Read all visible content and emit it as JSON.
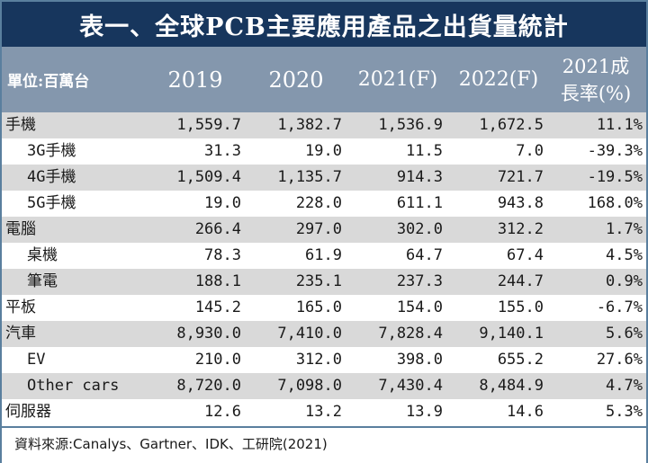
{
  "title": "表一、全球PCB主要應用產品之出貨量統計",
  "header": {
    "unit": "單位:百萬台",
    "y2019": "2019",
    "y2020": "2020",
    "y2021": "2021(F)",
    "y2022": "2022(F)",
    "growth_line1": "2021成",
    "growth_line2": "長率(%)"
  },
  "rows": [
    {
      "category": "手機",
      "y2019": "1,559.7",
      "y2020": "1,382.7",
      "y2021": "1,536.9",
      "y2022": "1,672.5",
      "growth": "11.1%"
    },
    {
      "category": "3G手機",
      "y2019": "31.3",
      "y2020": "19.0",
      "y2021": "11.5",
      "y2022": "7.0",
      "growth": "-39.3%"
    },
    {
      "category": "4G手機",
      "y2019": "1,509.4",
      "y2020": "1,135.7",
      "y2021": "914.3",
      "y2022": "721.7",
      "growth": "-19.5%"
    },
    {
      "category": "5G手機",
      "y2019": "19.0",
      "y2020": "228.0",
      "y2021": "611.1",
      "y2022": "943.8",
      "growth": "168.0%"
    },
    {
      "category": "電腦",
      "y2019": "266.4",
      "y2020": "297.0",
      "y2021": "302.0",
      "y2022": "312.2",
      "growth": "1.7%"
    },
    {
      "category": "桌機",
      "y2019": "78.3",
      "y2020": "61.9",
      "y2021": "64.7",
      "y2022": "67.4",
      "growth": "4.5%"
    },
    {
      "category": "筆電",
      "y2019": "188.1",
      "y2020": "235.1",
      "y2021": "237.3",
      "y2022": "244.7",
      "growth": "0.9%"
    },
    {
      "category": "平板",
      "y2019": "145.2",
      "y2020": "165.0",
      "y2021": "154.0",
      "y2022": "155.0",
      "growth": "-6.7%"
    },
    {
      "category": "汽車",
      "y2019": "8,930.0",
      "y2020": "7,410.0",
      "y2021": "7,828.4",
      "y2022": "9,140.1",
      "growth": "5.6%"
    },
    {
      "category": "EV",
      "y2019": "210.0",
      "y2020": "312.0",
      "y2021": "398.0",
      "y2022": "655.2",
      "growth": "27.6%"
    },
    {
      "category": "Other cars",
      "y2019": "8,720.0",
      "y2020": "7,098.0",
      "y2021": "7,430.4",
      "y2022": "8,484.9",
      "growth": "4.7%"
    },
    {
      "category": "伺服器",
      "y2019": "12.6",
      "y2020": "13.2",
      "y2021": "13.9",
      "y2022": "14.6",
      "growth": "5.3%"
    }
  ],
  "source": "資料來源:Canalys、Gartner、IDK、工研院(2021)",
  "colors": {
    "title_bg": "#17365d",
    "header_bg": "#8497ad",
    "shade_row": "#d9d9d9",
    "border": "#5a7f9e"
  }
}
